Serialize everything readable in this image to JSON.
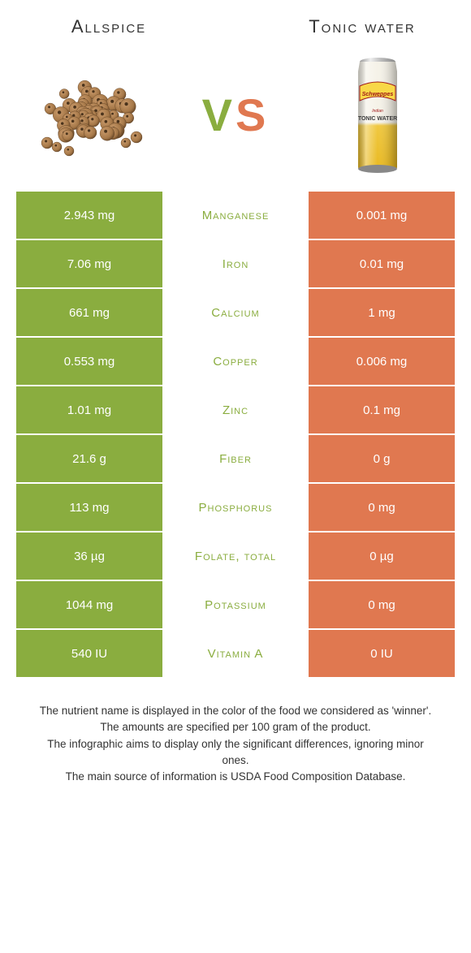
{
  "titles": {
    "left": "Allspice",
    "right": "Tonic water"
  },
  "vs": {
    "v": "V",
    "s": "S"
  },
  "colors": {
    "left": "#8aad3f",
    "right": "#e07850",
    "text": "#333333",
    "bg": "#ffffff"
  },
  "rows": [
    {
      "left": "2.943 mg",
      "mid": "Manganese",
      "right": "0.001 mg",
      "midColor": "#8aad3f"
    },
    {
      "left": "7.06 mg",
      "mid": "Iron",
      "right": "0.01 mg",
      "midColor": "#8aad3f"
    },
    {
      "left": "661 mg",
      "mid": "Calcium",
      "right": "1 mg",
      "midColor": "#8aad3f"
    },
    {
      "left": "0.553 mg",
      "mid": "Copper",
      "right": "0.006 mg",
      "midColor": "#8aad3f"
    },
    {
      "left": "1.01 mg",
      "mid": "Zinc",
      "right": "0.1 mg",
      "midColor": "#8aad3f"
    },
    {
      "left": "21.6 g",
      "mid": "Fiber",
      "right": "0 g",
      "midColor": "#8aad3f"
    },
    {
      "left": "113 mg",
      "mid": "Phosphorus",
      "right": "0 mg",
      "midColor": "#8aad3f"
    },
    {
      "left": "36 µg",
      "mid": "Folate, total",
      "right": "0 µg",
      "midColor": "#8aad3f"
    },
    {
      "left": "1044 mg",
      "mid": "Potassium",
      "right": "0 mg",
      "midColor": "#8aad3f"
    },
    {
      "left": "540 IU",
      "mid": "Vitamin A",
      "right": "0 IU",
      "midColor": "#8aad3f"
    }
  ],
  "footer": {
    "line1": "The nutrient name is displayed in the color of the food we considered as 'winner'.",
    "line2": "The amounts are specified per 100 gram of the product.",
    "line3": "The infographic aims to display only the significant differences, ignoring minor ones.",
    "line4": "The main source of information is USDA Food Composition Database."
  },
  "images": {
    "allspice": {
      "berry_color": "#a67848",
      "berry_dark": "#6b4a2a",
      "berry_light": "#c99a6b"
    },
    "tonic": {
      "can_top": "#cccccc",
      "can_body_top": "#f5f2e8",
      "can_body_bottom": "#f0c840",
      "label_red": "#a01818",
      "label_yellow": "#f8d848",
      "text_dark": "#3a3a3a"
    }
  }
}
